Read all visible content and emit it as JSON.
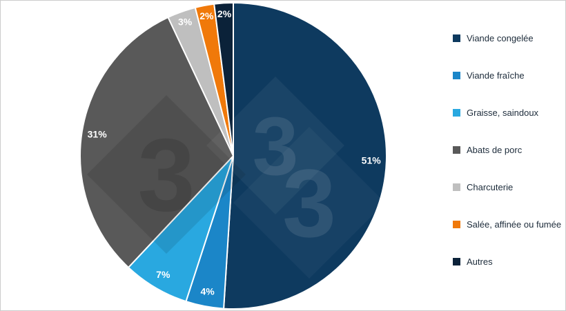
{
  "chart_data": {
    "type": "pie",
    "title": "",
    "unit": "%",
    "direction": "clockwise",
    "start_angle_deg": 0,
    "legend_position": "right",
    "labels": [
      "Viande congelée",
      "Viande fraîche",
      "Graisse, saindoux",
      "Abats de porc",
      "Charcuterie",
      "Salée, affinée ou fumée",
      "Autres"
    ],
    "values": [
      51,
      4,
      7,
      31,
      3,
      2,
      2
    ],
    "slice_labels": [
      "51%",
      "4%",
      "7%",
      "31%",
      "3%",
      "2%",
      "2%"
    ],
    "colors": [
      "#0e3a5f",
      "#1b86c8",
      "#29a8e0",
      "#595959",
      "#bfbfbf",
      "#f0790a",
      "#0b2239"
    ]
  },
  "watermark": {
    "name": "333-watermark",
    "glyph": "3"
  }
}
